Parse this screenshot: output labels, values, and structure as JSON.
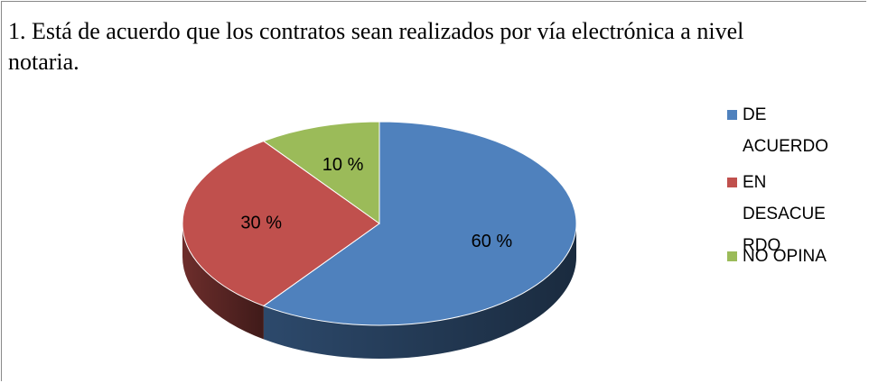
{
  "chart_data": {
    "type": "pie",
    "title": "1. Está de acuerdo que los contratos sean realizados por vía electrónica a nivel notaria.",
    "categories": [
      "DE ACUERDO",
      "EN DESACUERDO",
      "NO OPINA"
    ],
    "values": [
      60,
      30,
      10
    ],
    "value_labels": [
      "60 %",
      "30 %",
      "10 %"
    ],
    "colors": [
      "#4f81bd",
      "#c0504d",
      "#9bbb59"
    ],
    "legend": "right"
  }
}
